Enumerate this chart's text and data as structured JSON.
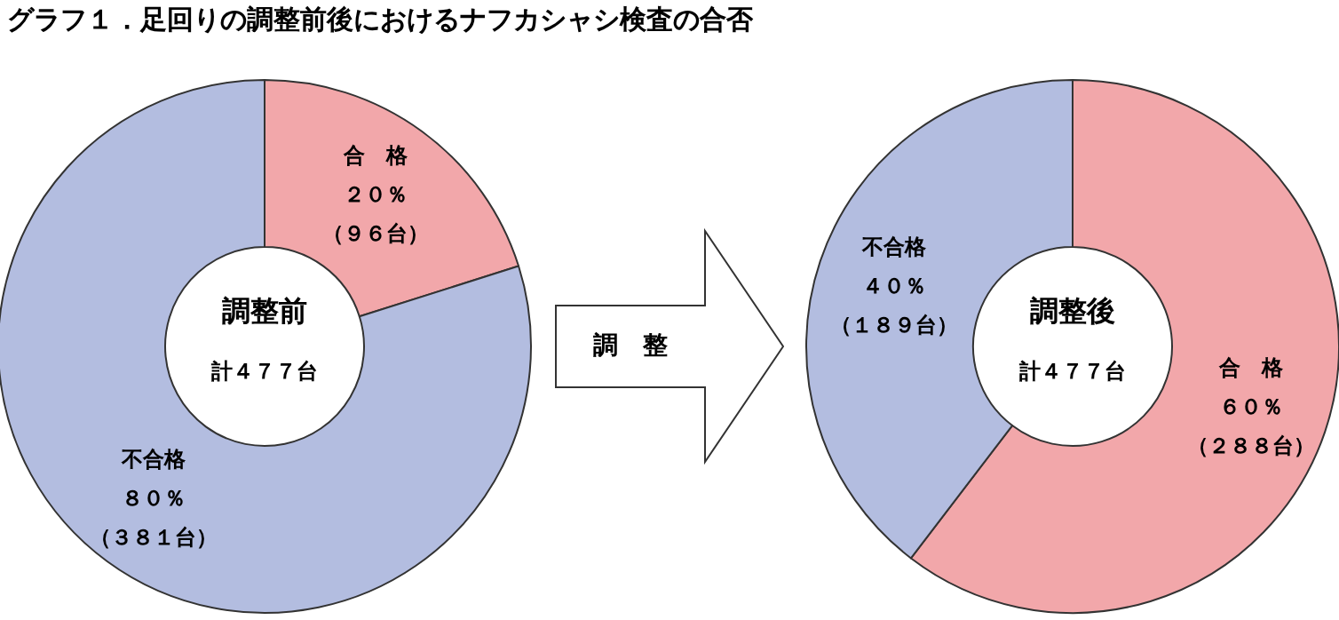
{
  "chart_data": [
    {
      "type": "donut",
      "title": "グラフ１．足回りの調整前後におけるナフカシャシ検査の合否",
      "categories": [
        "合　格",
        "不合格"
      ],
      "values": [
        96,
        381
      ],
      "value_labels": [
        "２０％（９６台）",
        "８０％（３８１台）"
      ],
      "colors": [
        "#f2a7aa",
        "#b3bde0"
      ],
      "annotations": [
        "調整前",
        "計４７７台"
      ]
    },
    {
      "type": "other",
      "annotations": [
        "調　整"
      ]
    },
    {
      "type": "donut",
      "categories": [
        "合　格",
        "不合格"
      ],
      "values": [
        288,
        189
      ],
      "value_labels": [
        "６０％（２８８台）",
        "４０％（１８９台）"
      ],
      "colors": [
        "#f2a7aa",
        "#b3bde0"
      ],
      "annotations": [
        "調整後",
        "計４７７台"
      ]
    }
  ]
}
